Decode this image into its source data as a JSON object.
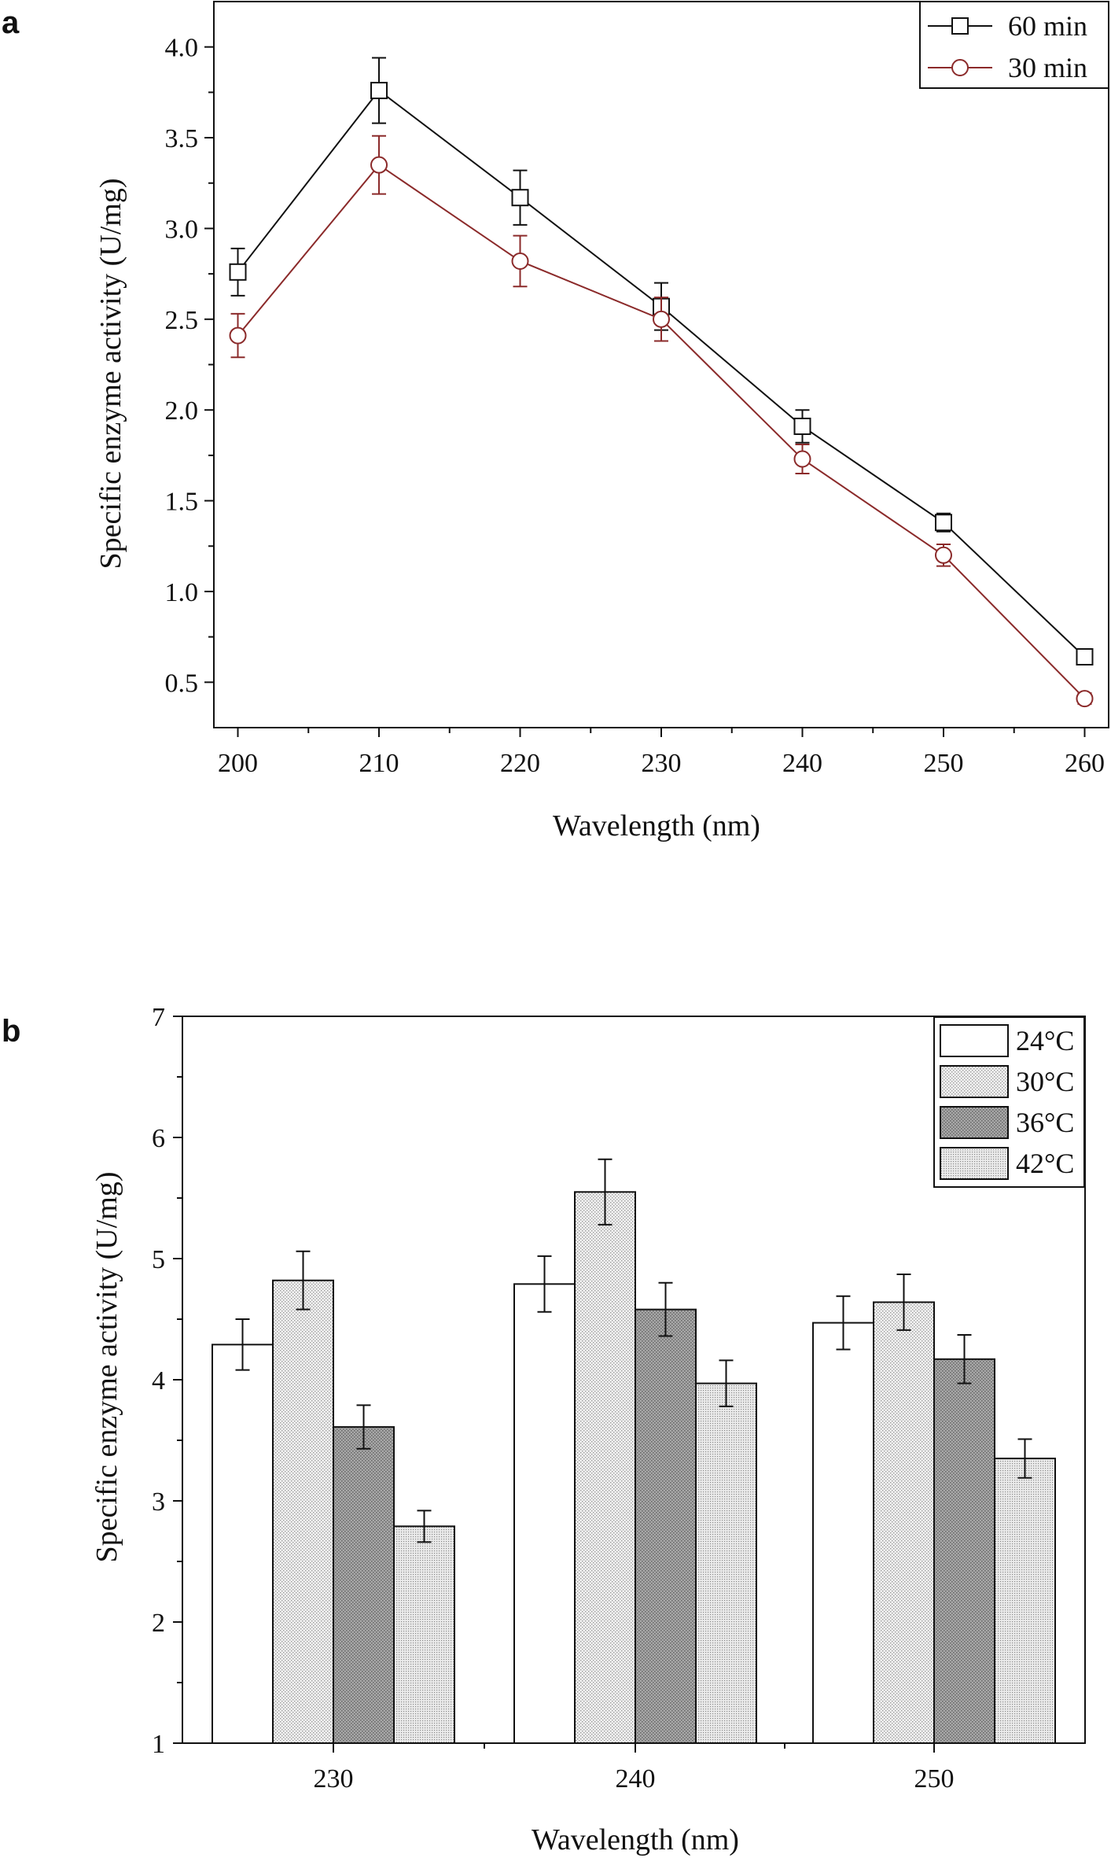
{
  "chart_data": [
    {
      "panel": "a",
      "type": "line",
      "title": "",
      "xlabel": "Wavelength (nm)",
      "ylabel": "Specific enzyme activity (U/mg)",
      "x": [
        200,
        210,
        220,
        230,
        240,
        250,
        260
      ],
      "x_tick_labels": [
        "200",
        "210",
        "220",
        "230",
        "240",
        "250",
        "260"
      ],
      "y_tick_labels": [
        "0.5",
        "1.0",
        "1.5",
        "2.0",
        "2.5",
        "3.0",
        "3.5",
        "4.0"
      ],
      "xlim": [
        198.3,
        261.7
      ],
      "ylim": [
        0.25,
        4.25
      ],
      "legend_position": "top-right",
      "series": [
        {
          "name": "60 min",
          "marker": "square",
          "color": "#111111",
          "values": [
            2.76,
            3.76,
            3.17,
            2.57,
            1.91,
            1.38,
            0.64
          ],
          "errors": [
            0.13,
            0.18,
            0.15,
            0.13,
            0.09,
            0.05,
            0.03
          ]
        },
        {
          "name": "30 min",
          "marker": "circle",
          "color": "#8b2a2a",
          "values": [
            2.41,
            3.35,
            2.82,
            2.5,
            1.73,
            1.2,
            0.41
          ],
          "errors": [
            0.12,
            0.16,
            0.14,
            0.12,
            0.08,
            0.06,
            0.03
          ]
        }
      ]
    },
    {
      "panel": "b",
      "type": "bar",
      "title": "",
      "xlabel": "Wavelength (nm)",
      "ylabel": "Specific enzyme activity (U/mg)",
      "categories": [
        "230",
        "240",
        "250"
      ],
      "y_tick_labels": [
        "1",
        "2",
        "3",
        "4",
        "5",
        "6",
        "7"
      ],
      "ylim": [
        1,
        7
      ],
      "legend_position": "top-right",
      "series": [
        {
          "name": "24°C",
          "fill": "white",
          "values": [
            4.29,
            4.79,
            4.47
          ],
          "errors": [
            0.21,
            0.23,
            0.22
          ]
        },
        {
          "name": "30°C",
          "fill": "light-dots",
          "values": [
            4.82,
            5.55,
            4.64
          ],
          "errors": [
            0.24,
            0.27,
            0.23
          ]
        },
        {
          "name": "36°C",
          "fill": "dark-dots",
          "values": [
            3.61,
            4.58,
            4.17
          ],
          "errors": [
            0.18,
            0.22,
            0.2
          ]
        },
        {
          "name": "42°C",
          "fill": "fine-dots",
          "values": [
            2.79,
            3.97,
            3.35
          ],
          "errors": [
            0.13,
            0.19,
            0.16
          ]
        }
      ]
    }
  ]
}
